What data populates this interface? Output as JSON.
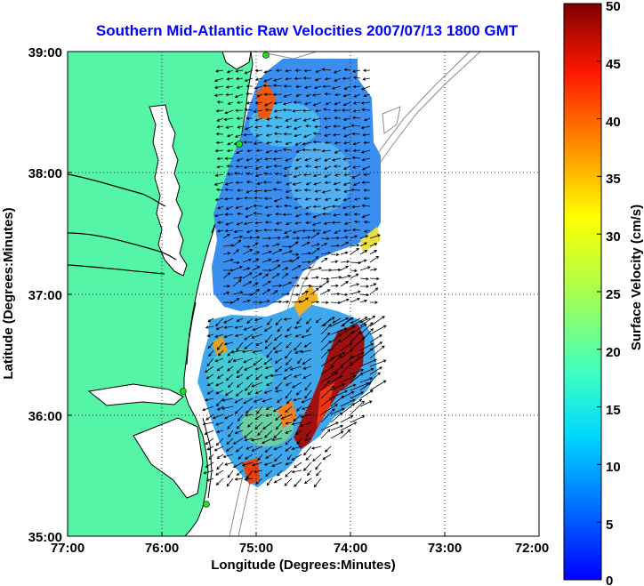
{
  "map": {
    "title": "Southern Mid-Atlantic Raw Velocities 2007/07/13 1800 GMT",
    "xlabel": "Longitude (Degrees:Minutes)",
    "ylabel": "Latitude (Degrees:Minutes)",
    "xticks": [
      "77:00",
      "76:00",
      "75:00",
      "74:00",
      "73:00",
      "72:00"
    ],
    "yticks": [
      "39:00",
      "38:00",
      "37:00",
      "36:00",
      "35:00"
    ],
    "lon_range": [
      -77,
      -72
    ],
    "lat_range": [
      35,
      39
    ],
    "grid": "dotted"
  },
  "colorbar": {
    "label": "Surface Velocity (cm/s)",
    "ticks": [
      "50",
      "45",
      "40",
      "35",
      "30",
      "25",
      "20",
      "15",
      "10",
      "5",
      "0"
    ],
    "range": [
      0,
      50
    ],
    "colormap": "jet"
  },
  "colors": {
    "land": "#55f5a8",
    "coast": "#000000",
    "water": "#ffffff",
    "site_marker": "#22dd22",
    "title": "#0000ff"
  }
}
